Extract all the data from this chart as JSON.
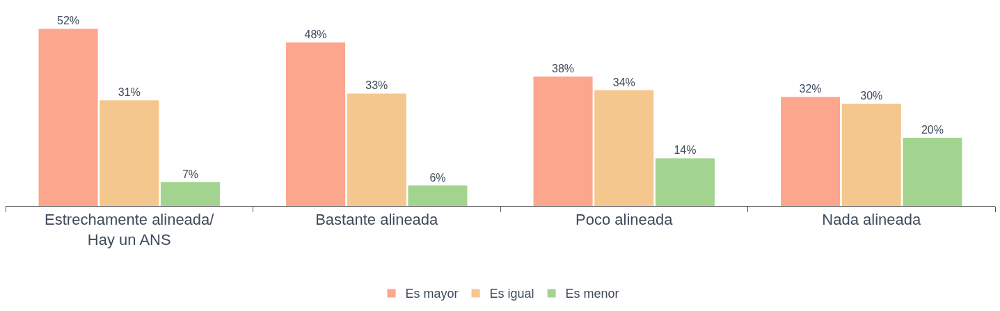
{
  "chart_data": {
    "type": "bar",
    "categories": [
      "Estrechamente alineada/\nHay un ANS",
      "Bastante alineada",
      "Poco alineada",
      "Nada alineada"
    ],
    "series": [
      {
        "name": "Es mayor",
        "color": "#fba68d",
        "values": [
          52,
          48,
          38,
          32
        ],
        "value_labels": [
          "52%",
          "48%",
          "38%",
          "32%"
        ]
      },
      {
        "name": "Es igual",
        "color": "#f4c78e",
        "values": [
          31,
          33,
          34,
          30
        ],
        "value_labels": [
          "31%",
          "33%",
          "34%",
          "30%"
        ]
      },
      {
        "name": "Es menor",
        "color": "#a3d48f",
        "values": [
          7,
          6,
          14,
          20
        ],
        "value_labels": [
          "7%",
          "6%",
          "14%",
          "20%"
        ]
      }
    ],
    "grid": false,
    "legend": "bottom"
  }
}
